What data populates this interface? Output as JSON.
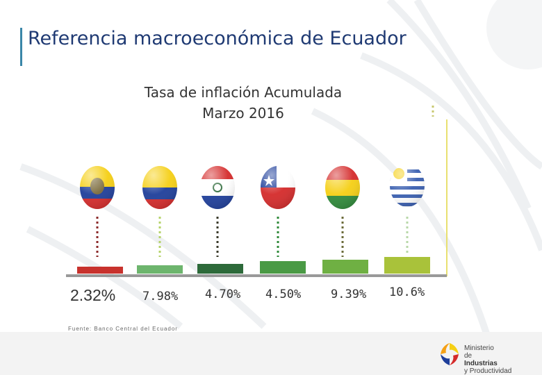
{
  "header": {
    "title": "Referencia macroeconómica de Ecuador"
  },
  "chart_data": {
    "type": "bar",
    "title": "Tasa de inflación Acumulada",
    "subtitle": "Marzo 2016",
    "categories": [
      "Ecuador",
      "Colombia",
      "Paraguay",
      "Chile",
      "Bolivia",
      "Uruguay"
    ],
    "values": [
      2.32,
      7.98,
      4.7,
      4.5,
      9.39,
      10.6
    ],
    "labels": [
      "2.32%",
      "7.98%",
      "4.70%",
      "4.50%",
      "9.39%",
      "10.6%"
    ],
    "colors": [
      "#c8322d",
      "#6db56d",
      "#2d6a3a",
      "#4a9a45",
      "#6fb043",
      "#a9c23a"
    ],
    "ylim": [
      0,
      11
    ]
  },
  "source": "Fuente: Banco Central del Ecuador",
  "logo": {
    "line1": "Ministerio",
    "line2": "de",
    "line3": "Industrias",
    "line4": "y Productividad"
  }
}
